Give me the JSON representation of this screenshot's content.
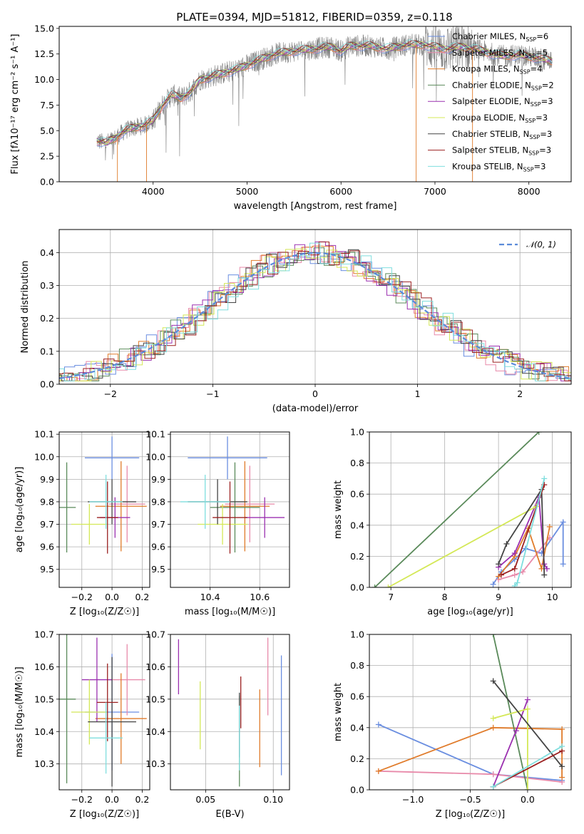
{
  "figure_title": "PLATE=0394, MJD=51812, FIBERID=0359, z=0.118",
  "colors": {
    "Chabrier MILES": "#6a8ee0",
    "Salpeter MILES": "#e88aaa",
    "Kroupa MILES": "#e07b2a",
    "Chabrier ELODIE": "#5a8a5a",
    "Salpeter ELODIE": "#9b30b0",
    "Kroupa ELODIE": "#d4e857",
    "Chabrier STELIB": "#444444",
    "Salpeter STELIB": "#9b2020",
    "Kroupa STELIB": "#7fdede"
  },
  "chart_data": [
    {
      "id": "spectrum",
      "type": "line",
      "title": "PLATE=0394, MJD=51812, FIBERID=0359, z=0.118",
      "xlabel": "wavelength [Angstrom, rest frame]",
      "ylabel": "Flux [fλ10⁻¹⁷ erg cm⁻² s⁻¹ A⁻¹]",
      "xlim": [
        3000,
        8450
      ],
      "ylim": [
        0,
        15.2
      ],
      "xticks": [
        4000,
        5000,
        6000,
        7000,
        8000
      ],
      "yticks": [
        0.0,
        2.5,
        5.0,
        7.5,
        10.0,
        12.5,
        15.0
      ],
      "grid": false,
      "legend_position": "top-right",
      "legend": [
        {
          "label": "Chabrier MILES, N",
          "sub": "SSP",
          "tail": "=6",
          "key": "Chabrier MILES"
        },
        {
          "label": "Salpeter MILES, N",
          "sub": "SSP",
          "tail": "=5",
          "key": "Salpeter MILES"
        },
        {
          "label": "Kroupa MILES, N",
          "sub": "SSP",
          "tail": "=4",
          "key": "Kroupa MILES"
        },
        {
          "label": "Chabrier ELODIE, N",
          "sub": "SSP",
          "tail": "=2",
          "key": "Chabrier ELODIE"
        },
        {
          "label": "Salpeter ELODIE, N",
          "sub": "SSP",
          "tail": "=3",
          "key": "Salpeter ELODIE"
        },
        {
          "label": "Kroupa ELODIE, N",
          "sub": "SSP",
          "tail": "=3",
          "key": "Kroupa ELODIE"
        },
        {
          "label": "Chabrier STELIB, N",
          "sub": "SSP",
          "tail": "=3",
          "key": "Chabrier STELIB"
        },
        {
          "label": "Salpeter STELIB, N",
          "sub": "SSP",
          "tail": "=3",
          "key": "Salpeter STELIB"
        },
        {
          "label": "Kroupa STELIB, N",
          "sub": "SSP",
          "tail": "=3",
          "key": "Kroupa STELIB"
        }
      ],
      "data_color": "#808080",
      "continuum": {
        "x": [
          3400,
          3500,
          3600,
          3700,
          3800,
          3900,
          4000,
          4100,
          4200,
          4300,
          4400,
          4500,
          4700,
          4900,
          5100,
          5300,
          5500,
          5700,
          5900,
          6000,
          6100,
          6300,
          6500,
          6700,
          6900,
          7100,
          7300,
          7500,
          7700,
          7900,
          8100,
          8250
        ],
        "y": [
          4.0,
          3.8,
          4.3,
          5.0,
          5.3,
          5.5,
          6.0,
          7.5,
          8.5,
          8.2,
          8.8,
          10.0,
          10.5,
          11.0,
          11.8,
          12.5,
          12.8,
          13.0,
          13.2,
          12.8,
          13.3,
          13.3,
          13.0,
          13.4,
          13.4,
          13.0,
          13.2,
          12.8,
          12.3,
          12.4,
          12.1,
          11.8
        ]
      }
    },
    {
      "id": "residuals",
      "type": "line",
      "xlabel": "(data-model)/error",
      "ylabel": "Normed distribution",
      "xlim": [
        -2.5,
        2.5
      ],
      "ylim": [
        0,
        0.47
      ],
      "xticks": [
        -2,
        -1,
        0,
        1,
        2
      ],
      "yticks": [
        0.0,
        0.1,
        0.2,
        0.3,
        0.4
      ],
      "grid": true,
      "legend_position": "top-right",
      "legend": [
        {
          "label": "𝒩(0, 1)",
          "key": "normal"
        }
      ],
      "normal_color": "#5b8bd9",
      "bin_width": 0.1
    },
    {
      "id": "age-vs-Z",
      "type": "scatter",
      "xlabel": "Z [log₁₀(Z/Z☉)]",
      "ylabel": "age  [log₁₀(age/yr)]",
      "xlim": [
        -0.35,
        0.25
      ],
      "ylim": [
        9.42,
        10.11
      ],
      "xticks": [
        -0.2,
        -0.0,
        0.2
      ],
      "xticklabels": [
        "−0.2",
        "0.0",
        "0.2"
      ],
      "yticks": [
        9.5,
        9.6,
        9.7,
        9.8,
        9.9,
        10.0,
        10.1
      ],
      "grid": true,
      "points": [
        {
          "key": "Chabrier MILES",
          "x": 0.0,
          "xerr": 0.18,
          "y": 9.995,
          "yerr": 0.095
        },
        {
          "key": "Salpeter MILES",
          "x": 0.1,
          "xerr": 0.12,
          "y": 9.79,
          "yerr": 0.17
        },
        {
          "key": "Kroupa MILES",
          "x": 0.06,
          "xerr": 0.17,
          "y": 9.78,
          "yerr": 0.2
        },
        {
          "key": "Chabrier ELODIE",
          "x": -0.3,
          "xerr": 0.06,
          "y": 9.775,
          "yerr": 0.2
        },
        {
          "key": "Salpeter ELODIE",
          "x": 0.02,
          "xerr": 0.1,
          "y": 9.73,
          "yerr": 0.09
        },
        {
          "key": "Kroupa ELODIE",
          "x": -0.15,
          "xerr": 0.12,
          "y": 9.7,
          "yerr": 0.09
        },
        {
          "key": "Chabrier STELIB",
          "x": 0.0,
          "xerr": 0.16,
          "y": 9.8,
          "yerr": 0.1
        },
        {
          "key": "Salpeter STELIB",
          "x": -0.03,
          "xerr": 0.07,
          "y": 9.73,
          "yerr": 0.16
        },
        {
          "key": "Kroupa STELIB",
          "x": -0.04,
          "xerr": 0.11,
          "y": 9.8,
          "yerr": 0.12
        }
      ]
    },
    {
      "id": "age-vs-mass",
      "type": "scatter",
      "xlabel": "mass [log₁₀(M/M☉)]",
      "ylabel": "",
      "xlim": [
        10.24,
        10.72
      ],
      "ylim": [
        9.42,
        10.11
      ],
      "xticks": [
        10.4,
        10.6
      ],
      "yticks": [
        9.5,
        9.6,
        9.7,
        9.8,
        9.9,
        10.0,
        10.1
      ],
      "grid": true,
      "points": [
        {
          "key": "Chabrier MILES",
          "x": 10.47,
          "xerr": 0.16,
          "y": 9.995,
          "yerr": 0.095
        },
        {
          "key": "Salpeter MILES",
          "x": 10.56,
          "xerr": 0.1,
          "y": 9.79,
          "yerr": 0.17
        },
        {
          "key": "Kroupa MILES",
          "x": 10.54,
          "xerr": 0.1,
          "y": 9.78,
          "yerr": 0.2
        },
        {
          "key": "Chabrier ELODIE",
          "x": 10.5,
          "xerr": 0.1,
          "y": 9.775,
          "yerr": 0.2
        },
        {
          "key": "Salpeter ELODIE",
          "x": 10.62,
          "xerr": 0.08,
          "y": 9.73,
          "yerr": 0.09
        },
        {
          "key": "Kroupa ELODIE",
          "x": 10.45,
          "xerr": 0.1,
          "y": 9.7,
          "yerr": 0.09
        },
        {
          "key": "Chabrier STELIB",
          "x": 10.43,
          "xerr": 0.12,
          "y": 9.8,
          "yerr": 0.1
        },
        {
          "key": "Salpeter STELIB",
          "x": 10.48,
          "xerr": 0.07,
          "y": 9.73,
          "yerr": 0.16
        },
        {
          "key": "Kroupa STELIB",
          "x": 10.38,
          "xerr": 0.1,
          "y": 9.8,
          "yerr": 0.12
        }
      ]
    },
    {
      "id": "mass-weight-vs-age",
      "type": "line",
      "xlabel": "age  [log₁₀(age/yr)]",
      "ylabel": "mass weight",
      "xlim": [
        6.6,
        10.35
      ],
      "ylim": [
        0,
        1.0
      ],
      "xticks": [
        7,
        8,
        9,
        10
      ],
      "yticks": [
        0.0,
        0.2,
        0.4,
        0.6,
        0.8,
        1.0
      ],
      "grid": true,
      "series": [
        {
          "key": "Chabrier MILES",
          "x": [
            8.9,
            9.05,
            9.3,
            9.5,
            9.8,
            10.2,
            10.2
          ],
          "y": [
            0.02,
            0.1,
            0.18,
            0.25,
            0.22,
            0.42,
            0.15
          ]
        },
        {
          "key": "Salpeter MILES",
          "x": [
            9.0,
            9.3,
            9.45,
            9.95
          ],
          "y": [
            0.05,
            0.08,
            0.1,
            0.32
          ]
        },
        {
          "key": "Kroupa MILES",
          "x": [
            9.0,
            9.3,
            9.55,
            9.8,
            9.95
          ],
          "y": [
            0.07,
            0.2,
            0.38,
            0.12,
            0.39
          ]
        },
        {
          "key": "Chabrier ELODIE",
          "x": [
            6.7,
            9.75
          ],
          "y": [
            0.0,
            1.0
          ]
        },
        {
          "key": "Salpeter ELODIE",
          "x": [
            9.0,
            9.3,
            9.75,
            9.85,
            9.9
          ],
          "y": [
            0.13,
            0.22,
            0.58,
            0.15,
            0.12
          ]
        },
        {
          "key": "Kroupa ELODIE",
          "x": [
            6.95,
            9.7
          ],
          "y": [
            0.0,
            0.52
          ]
        },
        {
          "key": "Chabrier STELIB",
          "x": [
            9.0,
            9.15,
            9.8,
            9.85
          ],
          "y": [
            0.15,
            0.28,
            0.63,
            0.08
          ]
        },
        {
          "key": "Salpeter STELIB",
          "x": [
            9.05,
            9.3,
            9.85
          ],
          "y": [
            0.08,
            0.12,
            0.66
          ]
        },
        {
          "key": "Kroupa STELIB",
          "x": [
            9.3,
            9.35,
            9.85
          ],
          "y": [
            0.01,
            0.03,
            0.7
          ]
        }
      ]
    },
    {
      "id": "mass-vs-Z",
      "type": "scatter",
      "xlabel": "Z [log₁₀(Z/Z☉)]",
      "ylabel": "mass [log₁₀(M/M☉)]",
      "xlim": [
        -0.35,
        0.25
      ],
      "ylim": [
        10.22,
        10.7
      ],
      "xticks": [
        -0.2,
        -0.0,
        0.2
      ],
      "xticklabels": [
        "−0.2",
        "0.0",
        "0.2"
      ],
      "yticks": [
        10.3,
        10.4,
        10.5,
        10.6,
        10.7
      ],
      "grid": true,
      "points": [
        {
          "key": "Chabrier MILES",
          "x": 0.0,
          "xerr": 0.18,
          "y": 10.46,
          "yerr": 0.18
        },
        {
          "key": "Salpeter MILES",
          "x": 0.1,
          "xerr": 0.12,
          "y": 10.56,
          "yerr": 0.11
        },
        {
          "key": "Kroupa MILES",
          "x": 0.06,
          "xerr": 0.17,
          "y": 10.44,
          "yerr": 0.14
        },
        {
          "key": "Chabrier ELODIE",
          "x": -0.3,
          "xerr": 0.06,
          "y": 10.5,
          "yerr": 0.26
        },
        {
          "key": "Salpeter ELODIE",
          "x": -0.1,
          "xerr": 0.1,
          "y": 10.56,
          "yerr": 0.13
        },
        {
          "key": "Kroupa ELODIE",
          "x": -0.15,
          "xerr": 0.12,
          "y": 10.46,
          "yerr": 0.1
        },
        {
          "key": "Chabrier STELIB",
          "x": 0.0,
          "xerr": 0.16,
          "y": 10.43,
          "yerr": 0.2
        },
        {
          "key": "Salpeter STELIB",
          "x": -0.03,
          "xerr": 0.07,
          "y": 10.49,
          "yerr": 0.12
        },
        {
          "key": "Kroupa STELIB",
          "x": -0.04,
          "xerr": 0.11,
          "y": 10.38,
          "yerr": 0.11
        }
      ]
    },
    {
      "id": "mass-vs-ebv",
      "type": "scatter",
      "xlabel": "E(B-V)",
      "ylabel": "",
      "xlim": [
        0.024,
        0.112
      ],
      "ylim": [
        10.22,
        10.7
      ],
      "xticks": [
        0.05,
        0.1
      ],
      "xticklabels": [
        "0.05",
        "0.10"
      ],
      "yticks": [
        10.3,
        10.4,
        10.5,
        10.6,
        10.7
      ],
      "grid": true,
      "points": [
        {
          "key": "Chabrier MILES",
          "x": 0.106,
          "y": 10.45,
          "yerr": 0.185
        },
        {
          "key": "Salpeter MILES",
          "x": 0.096,
          "y": 10.57,
          "yerr": 0.12
        },
        {
          "key": "Kroupa MILES",
          "x": 0.09,
          "y": 10.41,
          "yerr": 0.12
        },
        {
          "key": "Chabrier ELODIE",
          "x": 0.075,
          "y": 10.37,
          "yerr": 0.14
        },
        {
          "key": "Salpeter ELODIE",
          "x": 0.03,
          "y": 10.6,
          "yerr": 0.085
        },
        {
          "key": "Kroupa ELODIE",
          "x": 0.046,
          "y": 10.45,
          "yerr": 0.105
        },
        {
          "key": "Chabrier STELIB",
          "x": 0.075,
          "y": 10.42,
          "yerr": 0.1
        },
        {
          "key": "Salpeter STELIB",
          "x": 0.076,
          "y": 10.49,
          "yerr": 0.08
        },
        {
          "key": "Kroupa STELIB",
          "x": 0.075,
          "y": 10.38,
          "yerr": 0.1
        }
      ]
    },
    {
      "id": "mass-weight-vs-Z",
      "type": "line",
      "xlabel": "Z [log₁₀(Z/Z☉)]",
      "ylabel": "mass weight",
      "xlim": [
        -1.38,
        0.38
      ],
      "ylim": [
        0,
        1.0
      ],
      "xticks": [
        -1.0,
        -0.5,
        0.0
      ],
      "xticklabels": [
        "−1.0",
        "−0.5",
        "0.0"
      ],
      "yticks": [
        0.0,
        0.2,
        0.4,
        0.6,
        0.8,
        1.0
      ],
      "grid": true,
      "series": [
        {
          "key": "Chabrier MILES",
          "x": [
            -1.3,
            -0.3,
            0.3
          ],
          "y": [
            0.42,
            0.1,
            0.06
          ]
        },
        {
          "key": "Salpeter MILES",
          "x": [
            -1.3,
            -0.3,
            0.3
          ],
          "y": [
            0.12,
            0.1,
            0.05
          ]
        },
        {
          "key": "Kroupa MILES",
          "x": [
            -1.3,
            -0.3,
            0.3,
            0.3
          ],
          "y": [
            0.12,
            0.4,
            0.39,
            0.08
          ]
        },
        {
          "key": "Chabrier ELODIE",
          "x": [
            -0.3,
            0.0
          ],
          "y": [
            1.0,
            0.0
          ]
        },
        {
          "key": "Salpeter ELODIE",
          "x": [
            -0.3,
            -0.1,
            0.0
          ],
          "y": [
            0.02,
            0.38,
            0.58
          ]
        },
        {
          "key": "Kroupa ELODIE",
          "x": [
            -0.3,
            0.0,
            0.0
          ],
          "y": [
            0.46,
            0.52,
            0.0
          ]
        },
        {
          "key": "Chabrier STELIB",
          "x": [
            -0.3,
            0.3
          ],
          "y": [
            0.7,
            0.15
          ]
        },
        {
          "key": "Salpeter STELIB",
          "x": [
            -0.3,
            0.3
          ],
          "y": [
            0.02,
            0.25
          ]
        },
        {
          "key": "Kroupa STELIB",
          "x": [
            -0.3,
            0.3
          ],
          "y": [
            0.02,
            0.28
          ]
        }
      ]
    }
  ]
}
